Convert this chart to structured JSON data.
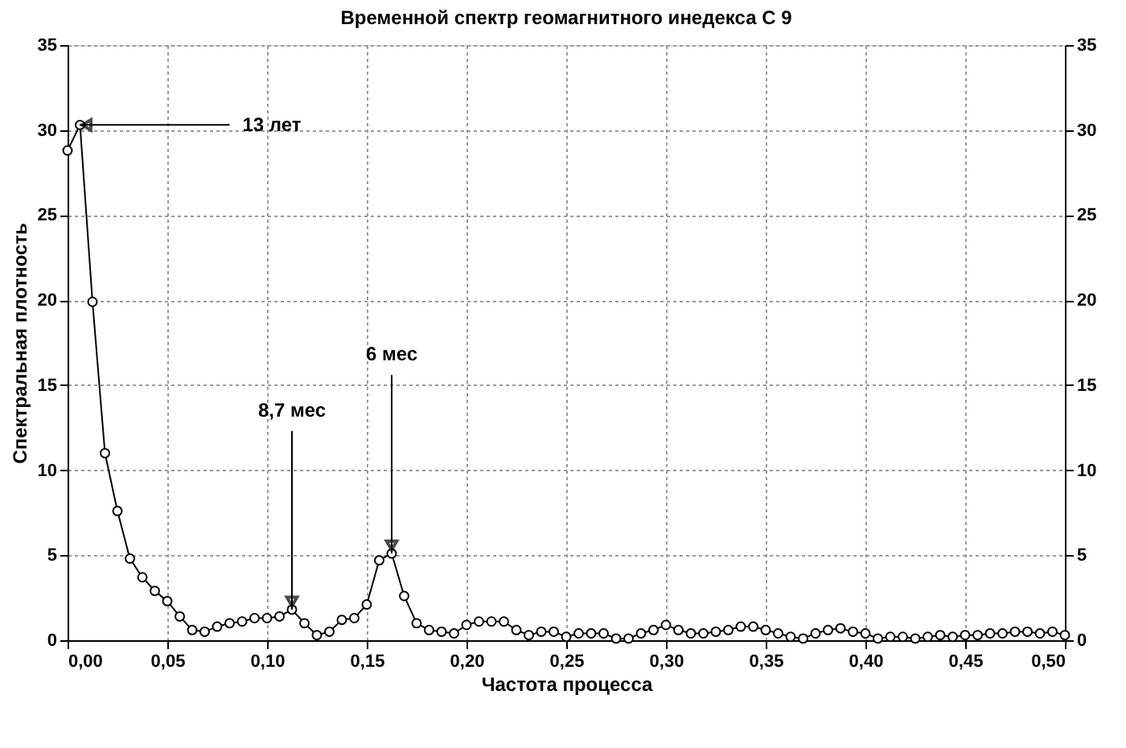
{
  "chart_data": {
    "type": "line",
    "title": "Временной спектр геомагнитного инедекса С 9",
    "xlabel": "Частота процесса",
    "ylabel": "Спектральная плотность",
    "x": [
      0,
      0.00625,
      0.0125,
      0.01875,
      0.025,
      0.03125,
      0.0375,
      0.04375,
      0.05,
      0.05625,
      0.0625,
      0.06875,
      0.075,
      0.08125,
      0.0875,
      0.09375,
      0.1,
      0.10625,
      0.1125,
      0.11875,
      0.125,
      0.13125,
      0.1375,
      0.14375,
      0.15,
      0.15625,
      0.1625,
      0.16875,
      0.175,
      0.18125,
      0.1875,
      0.19375,
      0.2,
      0.20625,
      0.2125,
      0.21875,
      0.225,
      0.23125,
      0.2375,
      0.24375,
      0.25,
      0.25625,
      0.2625,
      0.26875,
      0.275,
      0.28125,
      0.2875,
      0.29375,
      0.3,
      0.30625,
      0.3125,
      0.31875,
      0.325,
      0.33125,
      0.3375,
      0.34375,
      0.35,
      0.35625,
      0.3625,
      0.36875,
      0.375,
      0.38125,
      0.3875,
      0.39375,
      0.4,
      0.40625,
      0.4125,
      0.41875,
      0.425,
      0.43125,
      0.4375,
      0.44375,
      0.45,
      0.45625,
      0.4625,
      0.46875,
      0.475,
      0.48125,
      0.4875,
      0.49375,
      0.5
    ],
    "series": [
      {
        "color": "#000000",
        "values": [
          28.8,
          30.3,
          19.9,
          11.0,
          7.6,
          4.8,
          3.7,
          2.9,
          2.3,
          1.4,
          0.6,
          0.5,
          0.8,
          1.0,
          1.1,
          1.3,
          1.3,
          1.4,
          1.8,
          1.0,
          0.3,
          0.5,
          1.2,
          1.3,
          2.1,
          4.7,
          5.1,
          2.6,
          1.0,
          0.6,
          0.5,
          0.4,
          0.9,
          1.1,
          1.1,
          1.1,
          0.6,
          0.3,
          0.5,
          0.5,
          0.2,
          0.4,
          0.4,
          0.4,
          0.1,
          0.1,
          0.4,
          0.6,
          0.9,
          0.6,
          0.4,
          0.4,
          0.5,
          0.6,
          0.8,
          0.8,
          0.6,
          0.4,
          0.2,
          0.1,
          0.4,
          0.6,
          0.7,
          0.5,
          0.4,
          0.1,
          0.2,
          0.2,
          0.1,
          0.2,
          0.3,
          0.2,
          0.3,
          0.3,
          0.4,
          0.4,
          0.5,
          0.5,
          0.4,
          0.5,
          0.3
        ]
      }
    ],
    "xlim": [
      0,
      0.5
    ],
    "xticks": [
      {
        "value": 0,
        "label": "0,00"
      },
      {
        "value": 0.05,
        "label": "0,05"
      },
      {
        "value": 0.1,
        "label": "0,10"
      },
      {
        "value": 0.15,
        "label": "0,15"
      },
      {
        "value": 0.2,
        "label": "0,20"
      },
      {
        "value": 0.25,
        "label": "0,25"
      },
      {
        "value": 0.3,
        "label": "0,30"
      },
      {
        "value": 0.35,
        "label": "0,35"
      },
      {
        "value": 0.4,
        "label": "0,40"
      },
      {
        "value": 0.45,
        "label": "0,45"
      },
      {
        "value": 0.5,
        "label": "0,50"
      }
    ],
    "ylim": [
      0,
      35
    ],
    "yticks": [
      0,
      5,
      10,
      15,
      20,
      25,
      30,
      35
    ],
    "y2lim": [
      0,
      35
    ],
    "y2ticks": [
      0,
      5,
      10,
      15,
      20,
      25,
      30,
      35
    ],
    "annotations": [
      {
        "text": "13 лет",
        "x": 0.00625,
        "y": 30.3
      },
      {
        "text": "8,7 мес",
        "x": 0.1125,
        "y": 1.8
      },
      {
        "text": "6 мес",
        "x": 0.1625,
        "y": 5.1
      }
    ],
    "grid": true,
    "marker": "circle",
    "line_style": "solid"
  }
}
